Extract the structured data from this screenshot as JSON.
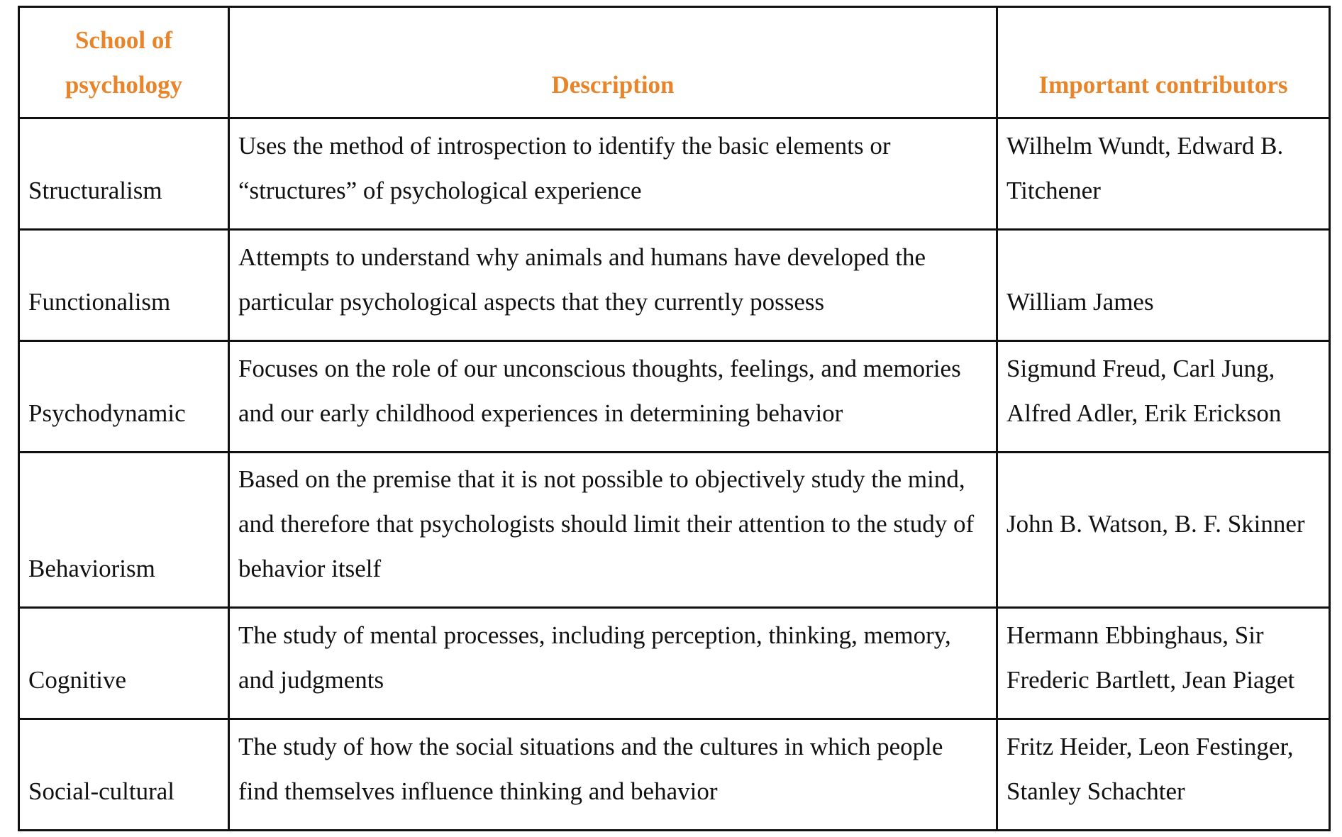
{
  "table": {
    "headers": [
      "School of psychology",
      "Description",
      "Important contributors"
    ],
    "rows": [
      {
        "school": "Structuralism",
        "description": "Uses the method of introspection to identify the basic elements or “structures” of psychological experience",
        "contributors": "Wilhelm Wundt, Edward B. Titchener"
      },
      {
        "school": "Functionalism",
        "description": "Attempts to understand why animals and humans have developed the particular psychological aspects that they currently possess",
        "contributors": "William James"
      },
      {
        "school": "Psychodynamic",
        "description": "Focuses on the role of our unconscious thoughts, feelings, and memories and our early childhood experiences in determining behavior",
        "contributors": "Sigmund Freud, Carl Jung, Alfred Adler, Erik Erickson"
      },
      {
        "school": "Behaviorism",
        "description": "Based on the premise that it is not possible to objectively study the mind, and therefore that psychologists should limit their attention to the study of behavior itself",
        "contributors": "John B. Watson, B. F. Skinner"
      },
      {
        "school": "Cognitive",
        "description": "The study of mental processes, including perception, thinking, memory, and judgments",
        "contributors": "Hermann Ebbinghaus, Sir Frederic Bartlett, Jean Piaget"
      },
      {
        "school": "Social-cultural",
        "description": "The study of how the social situations and the cultures in which people find themselves influence thinking and behavior",
        "contributors": "Fritz Heider, Leon Festinger, Stanley Schachter"
      }
    ]
  },
  "colors": {
    "header_text": "#e8852a",
    "border": "#111111"
  }
}
